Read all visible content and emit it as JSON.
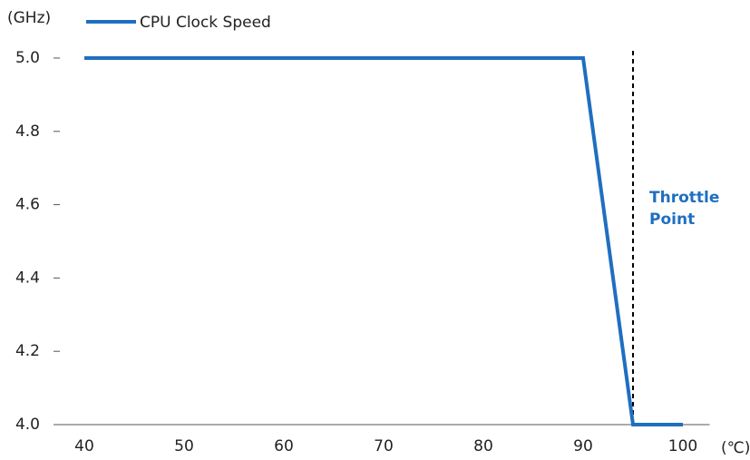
{
  "chart_data": {
    "type": "line",
    "x_unit": "(℃)",
    "y_unit": "(GHz)",
    "x": [
      40,
      90,
      95,
      100
    ],
    "series": [
      {
        "name": "CPU Clock Speed",
        "color": "#1f6fc0",
        "values": [
          5.0,
          5.0,
          4.0,
          4.0
        ]
      }
    ],
    "xlim": [
      37.5,
      102.5
    ],
    "xticks": [
      40,
      50,
      60,
      70,
      80,
      90,
      100
    ],
    "ylim": [
      4.0,
      5.0
    ],
    "yticks": [
      {
        "value": 4.0,
        "label": "4.0"
      },
      {
        "value": 4.2,
        "label": "4.2"
      },
      {
        "value": 4.4,
        "label": "4.4"
      },
      {
        "value": 4.6,
        "label": "4.6"
      },
      {
        "value": 4.8,
        "label": "4.8"
      },
      {
        "value": 5.0,
        "label": "5.0"
      }
    ],
    "vline": {
      "x": 95,
      "color": "#000000"
    },
    "annotation": {
      "lines": [
        "Throttle",
        "Point"
      ],
      "color": "#1f6fc0"
    },
    "legend": "top-left"
  }
}
